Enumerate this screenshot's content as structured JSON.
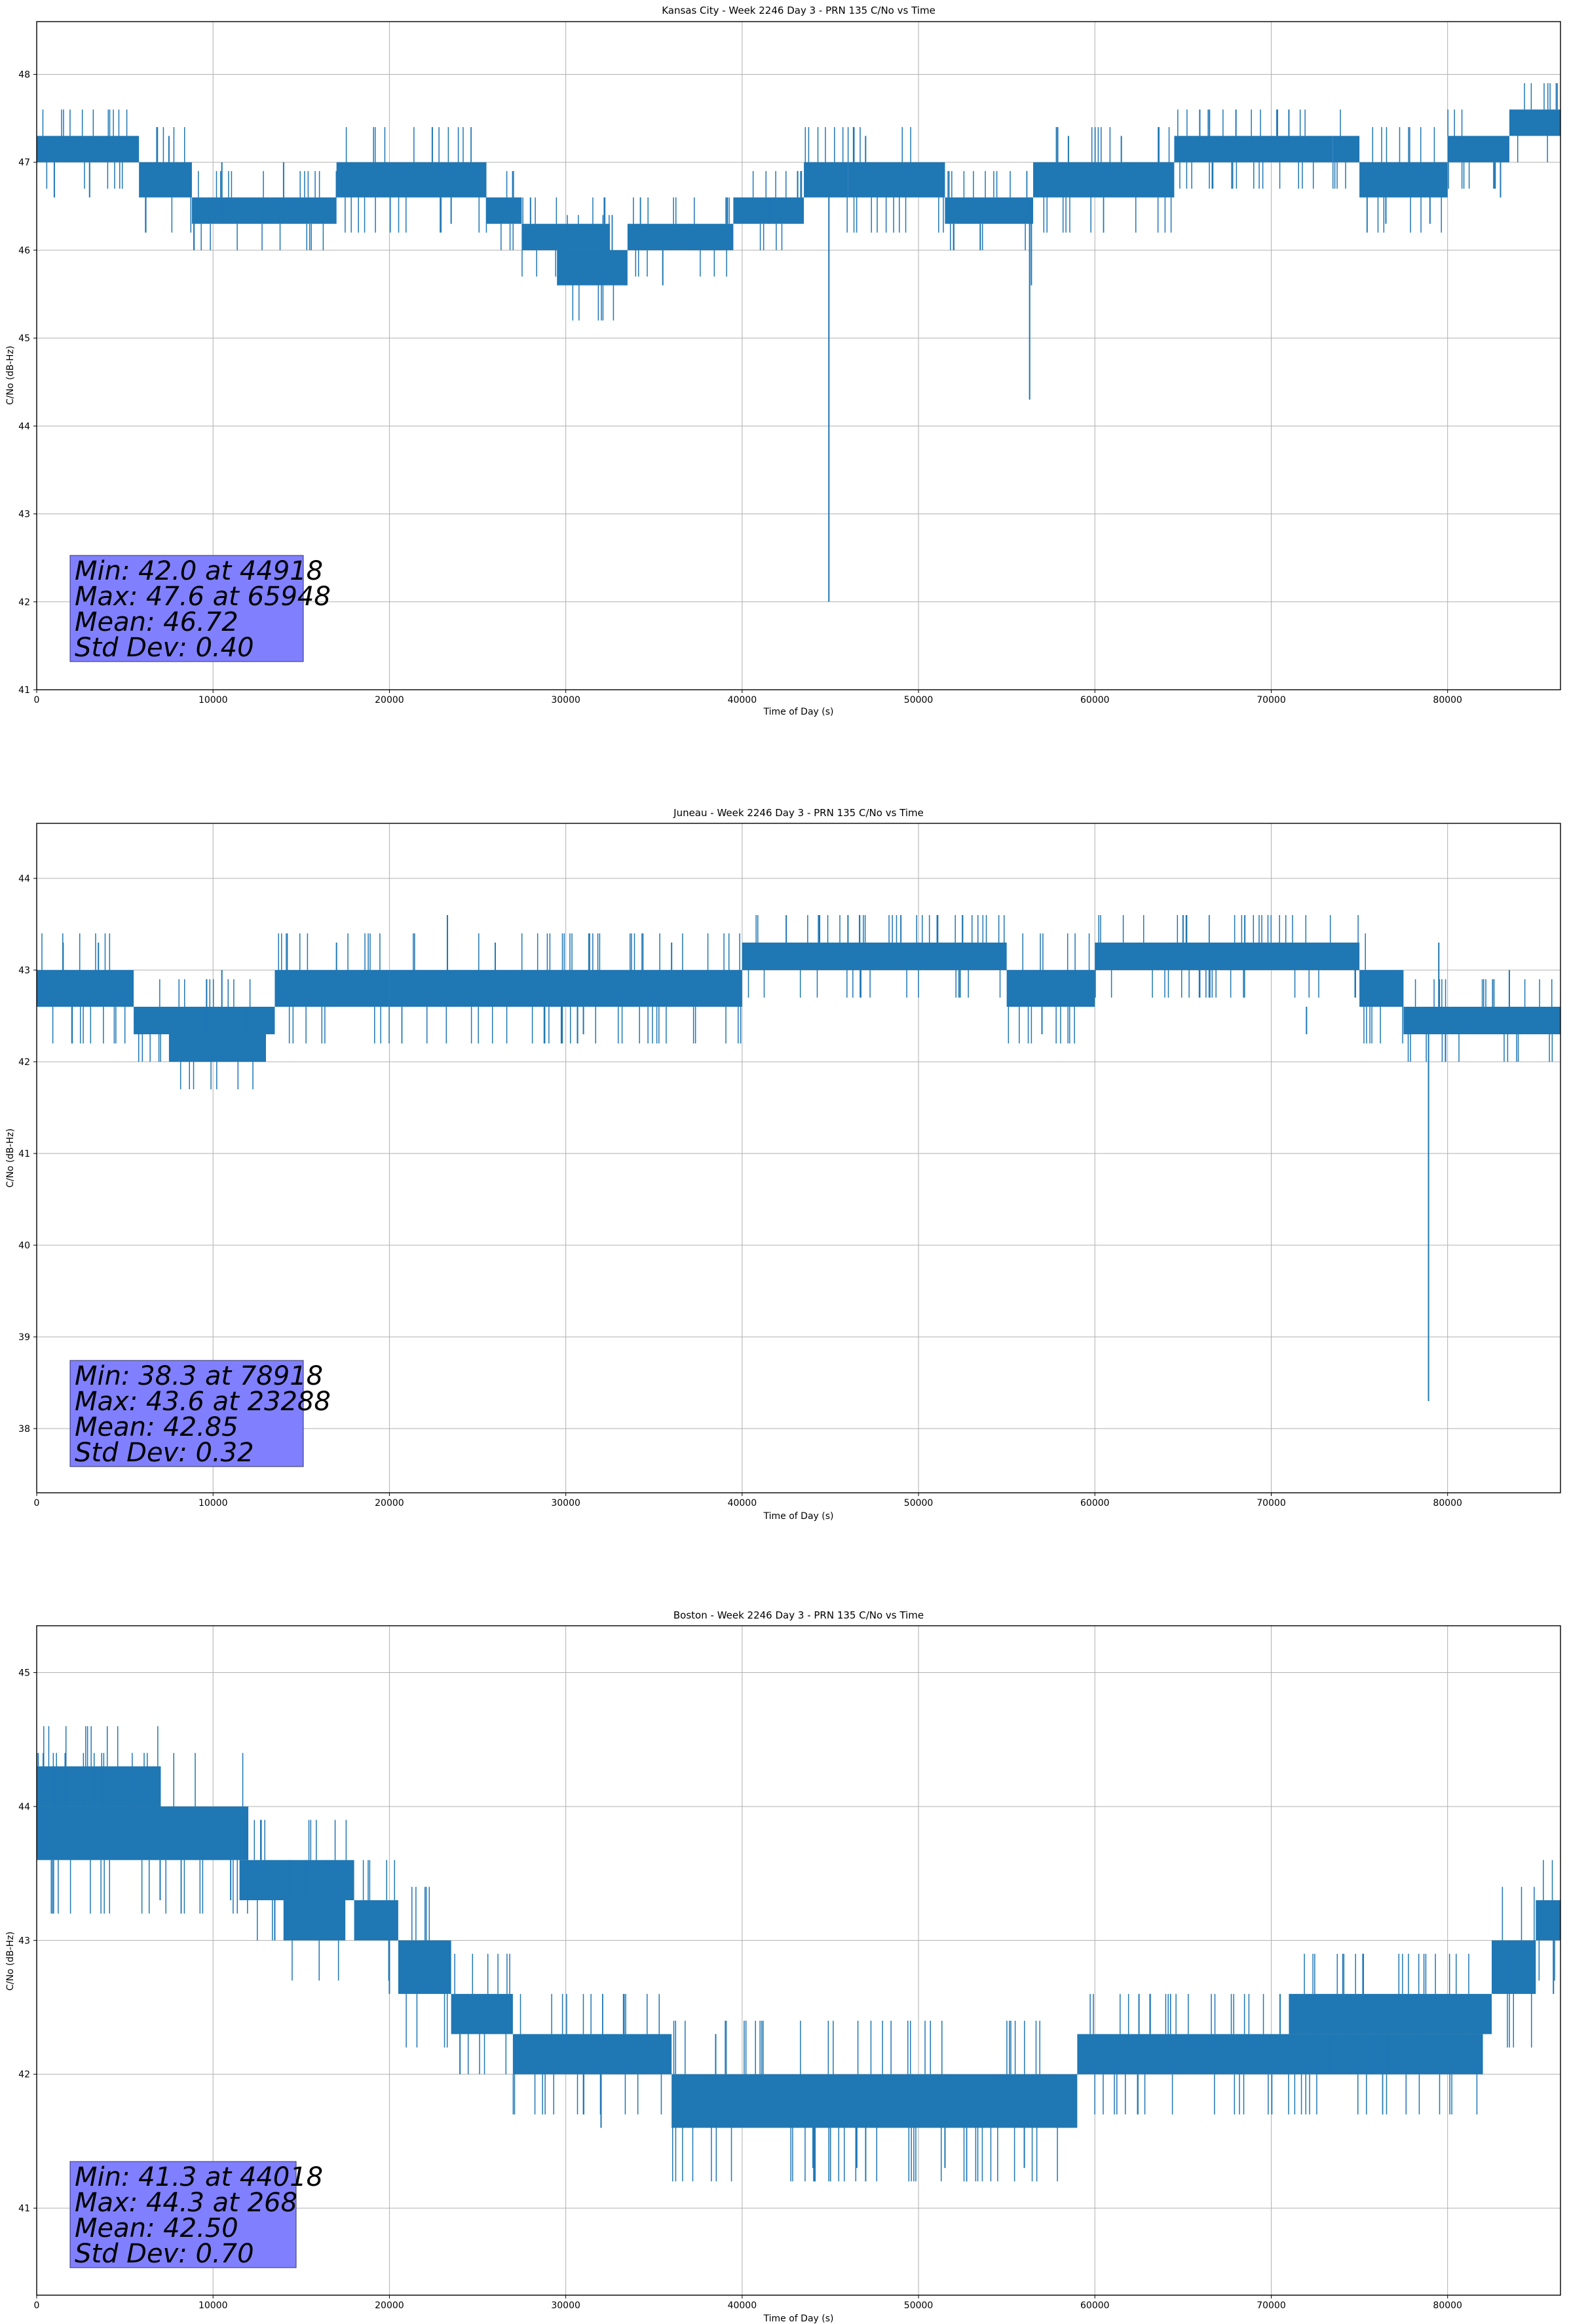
{
  "chart_data": [
    {
      "type": "line",
      "title": "Kansas City - Week 2246 Day 3 - PRN 135 C/No vs Time",
      "xlabel": "Time of Day (s)",
      "ylabel": "C/No (dB-Hz)",
      "xlim": [
        0,
        86400
      ],
      "ylim": [
        41,
        48.6
      ],
      "xticks": [
        0,
        10000,
        20000,
        30000,
        40000,
        50000,
        60000,
        70000,
        80000
      ],
      "yticks": [
        41,
        42,
        43,
        44,
        45,
        46,
        47,
        48
      ],
      "grid": true,
      "color": "#1f77b4",
      "segments": [
        {
          "x": [
            0,
            5800
          ],
          "low": 47.0,
          "high": 47.3
        },
        {
          "x": [
            5800,
            8800
          ],
          "low": 46.6,
          "high": 47.0
        },
        {
          "x": [
            8800,
            12500
          ],
          "low": 46.3,
          "high": 46.6
        },
        {
          "x": [
            12500,
            17000
          ],
          "low": 46.3,
          "high": 46.6
        },
        {
          "x": [
            17000,
            25500
          ],
          "low": 46.6,
          "high": 47.0
        },
        {
          "x": [
            25500,
            27500
          ],
          "low": 46.3,
          "high": 46.6
        },
        {
          "x": [
            27500,
            32500
          ],
          "low": 46.0,
          "high": 46.3
        },
        {
          "x": [
            29500,
            33500
          ],
          "low": 45.6,
          "high": 46.0
        },
        {
          "x": [
            33500,
            39500
          ],
          "low": 46.0,
          "high": 46.3
        },
        {
          "x": [
            39500,
            43500
          ],
          "low": 46.3,
          "high": 46.6
        },
        {
          "x": [
            43500,
            46000
          ],
          "low": 46.6,
          "high": 47.0
        },
        {
          "x": [
            46000,
            51500
          ],
          "low": 46.6,
          "high": 47.0
        },
        {
          "x": [
            51500,
            56500
          ],
          "low": 46.3,
          "high": 46.6
        },
        {
          "x": [
            56500,
            64500
          ],
          "low": 46.6,
          "high": 47.0
        },
        {
          "x": [
            64500,
            73500
          ],
          "low": 47.0,
          "high": 47.3
        },
        {
          "x": [
            73500,
            75000
          ],
          "low": 47.0,
          "high": 47.3
        },
        {
          "x": [
            75000,
            80000
          ],
          "low": 46.6,
          "high": 47.0
        },
        {
          "x": [
            80000,
            83500
          ],
          "low": 47.0,
          "high": 47.3
        },
        {
          "x": [
            83500,
            86400
          ],
          "low": 47.3,
          "high": 47.6
        }
      ],
      "spikes": [
        {
          "x": 1000,
          "from": 47.0,
          "to": 46.6
        },
        {
          "x": 3000,
          "from": 47.0,
          "to": 46.6
        },
        {
          "x": 7500,
          "from": 47.0,
          "to": 47.3
        },
        {
          "x": 10500,
          "from": 46.3,
          "to": 47.0
        },
        {
          "x": 14000,
          "from": 46.6,
          "to": 47.0
        },
        {
          "x": 23500,
          "from": 46.6,
          "to": 46.3
        },
        {
          "x": 28000,
          "from": 46.3,
          "to": 46.6
        },
        {
          "x": 31500,
          "from": 46.0,
          "to": 46.3
        },
        {
          "x": 35500,
          "from": 46.0,
          "to": 45.6
        },
        {
          "x": 37000,
          "from": 46.3,
          "to": 46.0
        },
        {
          "x": 41500,
          "from": 46.3,
          "to": 46.6
        },
        {
          "x": 44918,
          "from": 46.6,
          "to": 42.0
        },
        {
          "x": 47000,
          "from": 47.0,
          "to": 47.3
        },
        {
          "x": 52000,
          "from": 46.3,
          "to": 46.0
        },
        {
          "x": 53500,
          "from": 46.3,
          "to": 46.0
        },
        {
          "x": 56300,
          "from": 46.6,
          "to": 44.3
        },
        {
          "x": 56400,
          "from": 46.6,
          "to": 45.6
        },
        {
          "x": 58500,
          "from": 47.0,
          "to": 47.3
        },
        {
          "x": 61500,
          "from": 47.0,
          "to": 47.3
        },
        {
          "x": 65948,
          "from": 47.3,
          "to": 47.6
        },
        {
          "x": 66500,
          "from": 47.3,
          "to": 47.6
        },
        {
          "x": 68000,
          "from": 47.3,
          "to": 47.6
        },
        {
          "x": 71000,
          "from": 47.3,
          "to": 47.6
        },
        {
          "x": 76500,
          "from": 46.6,
          "to": 46.3
        },
        {
          "x": 79000,
          "from": 46.6,
          "to": 46.3
        },
        {
          "x": 83000,
          "from": 47.0,
          "to": 46.6
        }
      ],
      "stats": [
        "Min: 42.0 at 44918",
        "Max: 47.6 at 65948",
        "Mean: 46.72",
        "Std Dev: 0.40"
      ]
    },
    {
      "type": "line",
      "title": "Juneau - Week 2246 Day 3 - PRN 135 C/No vs Time",
      "xlabel": "Time of Day (s)",
      "ylabel": "C/No (dB-Hz)",
      "xlim": [
        0,
        86400
      ],
      "ylim": [
        37.3,
        44.6
      ],
      "xticks": [
        0,
        10000,
        20000,
        30000,
        40000,
        50000,
        60000,
        70000,
        80000
      ],
      "yticks": [
        38,
        39,
        40,
        41,
        42,
        43,
        44
      ],
      "grid": true,
      "color": "#1f77b4",
      "segments": [
        {
          "x": [
            0,
            5500
          ],
          "low": 42.6,
          "high": 43.0
        },
        {
          "x": [
            5500,
            13500
          ],
          "low": 42.3,
          "high": 42.6
        },
        {
          "x": [
            7500,
            13000
          ],
          "low": 42.0,
          "high": 42.3
        },
        {
          "x": [
            13500,
            20000
          ],
          "low": 42.6,
          "high": 43.0
        },
        {
          "x": [
            20000,
            40000
          ],
          "low": 42.6,
          "high": 43.0
        },
        {
          "x": [
            40000,
            55000
          ],
          "low": 43.0,
          "high": 43.3
        },
        {
          "x": [
            55000,
            60000
          ],
          "low": 42.6,
          "high": 43.0
        },
        {
          "x": [
            60000,
            75000
          ],
          "low": 43.0,
          "high": 43.3
        },
        {
          "x": [
            75000,
            77500
          ],
          "low": 42.6,
          "high": 43.0
        },
        {
          "x": [
            77500,
            86400
          ],
          "low": 42.3,
          "high": 42.6
        }
      ],
      "spikes": [
        {
          "x": 1500,
          "from": 43.0,
          "to": 43.3
        },
        {
          "x": 3500,
          "from": 43.0,
          "to": 43.3
        },
        {
          "x": 10500,
          "from": 42.6,
          "to": 43.0
        },
        {
          "x": 17000,
          "from": 43.0,
          "to": 43.3
        },
        {
          "x": 23288,
          "from": 43.0,
          "to": 43.6
        },
        {
          "x": 26000,
          "from": 43.0,
          "to": 43.3
        },
        {
          "x": 31000,
          "from": 42.6,
          "to": 42.3
        },
        {
          "x": 36000,
          "from": 43.0,
          "to": 43.3
        },
        {
          "x": 42500,
          "from": 43.3,
          "to": 43.6
        },
        {
          "x": 46000,
          "from": 43.3,
          "to": 43.6
        },
        {
          "x": 49000,
          "from": 43.3,
          "to": 43.6
        },
        {
          "x": 52500,
          "from": 43.3,
          "to": 43.6
        },
        {
          "x": 57000,
          "from": 42.6,
          "to": 42.3
        },
        {
          "x": 65000,
          "from": 43.3,
          "to": 43.6
        },
        {
          "x": 68500,
          "from": 43.3,
          "to": 43.6
        },
        {
          "x": 72000,
          "from": 42.6,
          "to": 42.3
        },
        {
          "x": 78918,
          "from": 42.3,
          "to": 38.3
        },
        {
          "x": 79500,
          "from": 42.6,
          "to": 43.3
        },
        {
          "x": 83500,
          "from": 42.6,
          "to": 43.0
        }
      ],
      "stats": [
        "Min: 38.3 at 78918",
        "Max: 43.6 at 23288",
        "Mean: 42.85",
        "Std Dev: 0.32"
      ]
    },
    {
      "type": "line",
      "title": "Boston - Week 2246 Day 3 - PRN 135 C/No vs Time",
      "xlabel": "Time of Day (s)",
      "ylabel": "C/No (dB-Hz)",
      "xlim": [
        0,
        86400
      ],
      "ylim": [
        40.35,
        45.35
      ],
      "xticks": [
        0,
        10000,
        20000,
        30000,
        40000,
        50000,
        60000,
        70000,
        80000
      ],
      "yticks": [
        41,
        42,
        43,
        44,
        45
      ],
      "grid": true,
      "color": "#1f77b4",
      "segments": [
        {
          "x": [
            0,
            7000
          ],
          "low": 44.0,
          "high": 44.3
        },
        {
          "x": [
            0,
            12000
          ],
          "low": 43.6,
          "high": 44.0
        },
        {
          "x": [
            11500,
            18000
          ],
          "low": 43.3,
          "high": 43.6
        },
        {
          "x": [
            14000,
            17500
          ],
          "low": 43.0,
          "high": 43.3
        },
        {
          "x": [
            18000,
            20500
          ],
          "low": 43.0,
          "high": 43.3
        },
        {
          "x": [
            20500,
            23500
          ],
          "low": 42.6,
          "high": 43.0
        },
        {
          "x": [
            23500,
            27000
          ],
          "low": 42.3,
          "high": 42.6
        },
        {
          "x": [
            27000,
            36000
          ],
          "low": 42.0,
          "high": 42.3
        },
        {
          "x": [
            36000,
            59000
          ],
          "low": 41.6,
          "high": 42.0
        },
        {
          "x": [
            59000,
            82000
          ],
          "low": 42.0,
          "high": 42.3
        },
        {
          "x": [
            71000,
            82500
          ],
          "low": 42.3,
          "high": 42.6
        },
        {
          "x": [
            82500,
            85000
          ],
          "low": 42.6,
          "high": 43.0
        },
        {
          "x": [
            85000,
            86400
          ],
          "low": 43.0,
          "high": 43.3
        }
      ],
      "spikes": [
        {
          "x": 1000,
          "from": 44.0,
          "to": 44.3
        },
        {
          "x": 7000,
          "from": 44.0,
          "to": 44.3
        },
        {
          "x": 7000,
          "from": 43.6,
          "to": 43.3
        },
        {
          "x": 11000,
          "from": 43.6,
          "to": 43.3
        },
        {
          "x": 13500,
          "from": 43.3,
          "to": 43.0
        },
        {
          "x": 20000,
          "from": 43.3,
          "to": 42.6
        },
        {
          "x": 24000,
          "from": 42.3,
          "to": 42.0
        },
        {
          "x": 32000,
          "from": 42.0,
          "to": 41.6
        },
        {
          "x": 38500,
          "from": 42.3,
          "to": 41.6
        },
        {
          "x": 44018,
          "from": 41.6,
          "to": 41.3
        },
        {
          "x": 46500,
          "from": 41.6,
          "to": 41.3
        },
        {
          "x": 51500,
          "from": 41.6,
          "to": 41.3
        },
        {
          "x": 56000,
          "from": 41.6,
          "to": 41.3
        },
        {
          "x": 62500,
          "from": 42.3,
          "to": 42.6
        },
        {
          "x": 70500,
          "from": 42.3,
          "to": 42.6
        },
        {
          "x": 74500,
          "from": 42.0,
          "to": 42.6
        },
        {
          "x": 83500,
          "from": 42.6,
          "to": 43.0
        },
        {
          "x": 86000,
          "from": 43.3,
          "to": 42.6
        }
      ],
      "stats": [
        "Min: 41.3 at 44018",
        "Max: 44.3 at 268",
        "Mean: 42.50",
        "Std Dev: 0.70"
      ]
    }
  ]
}
